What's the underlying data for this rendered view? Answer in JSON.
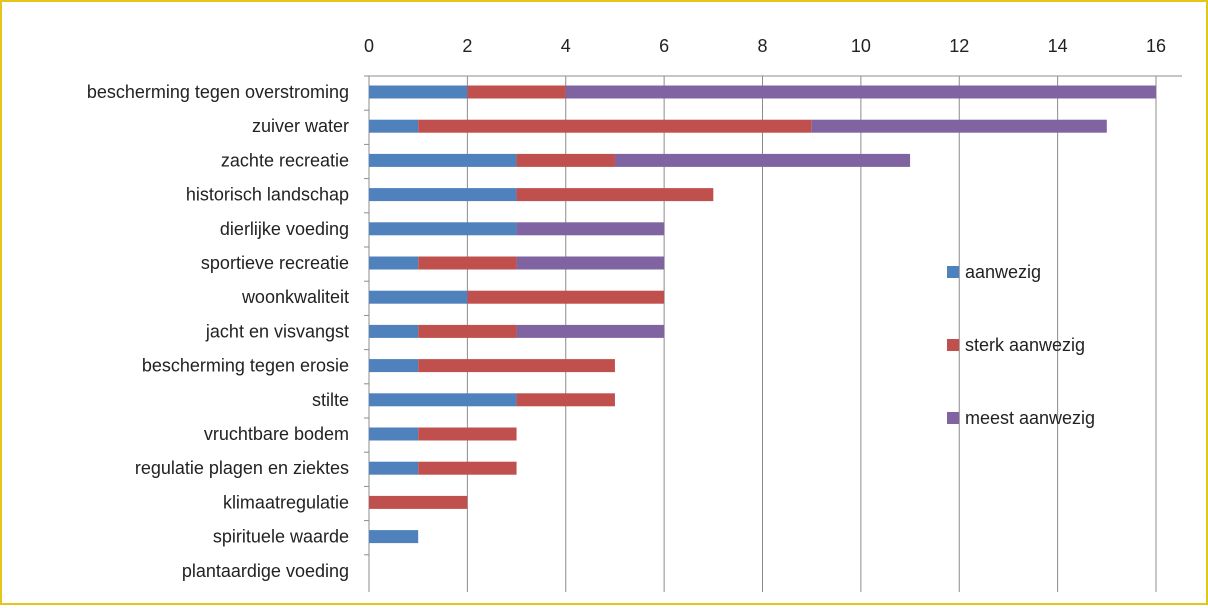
{
  "chart_data": {
    "type": "bar",
    "orientation": "horizontal",
    "stacked": true,
    "categories": [
      "bescherming tegen overstroming",
      "zuiver water",
      "zachte recreatie",
      "historisch landschap",
      "dierlijke voeding",
      "sportieve recreatie",
      "woonkwaliteit",
      "jacht en visvangst",
      "bescherming tegen erosie",
      "stilte",
      "vruchtbare bodem",
      "regulatie plagen en ziektes",
      "klimaatregulatie",
      "spirituele waarde",
      "plantaardige voeding"
    ],
    "series": [
      {
        "name": "aanwezig",
        "color": "#4f81bd",
        "values": [
          2,
          1,
          3,
          3,
          3,
          1,
          2,
          1,
          1,
          3,
          1,
          1,
          0,
          1,
          0
        ]
      },
      {
        "name": "sterk aanwezig",
        "color": "#c0504d",
        "values": [
          2,
          8,
          2,
          4,
          0,
          2,
          4,
          2,
          4,
          2,
          2,
          2,
          2,
          0,
          0
        ]
      },
      {
        "name": "meest aanwezig",
        "color": "#8064a2",
        "values": [
          12,
          6,
          6,
          0,
          3,
          3,
          0,
          3,
          0,
          0,
          0,
          0,
          0,
          0,
          0
        ]
      }
    ],
    "xlim": [
      0,
      16
    ],
    "xticks": [
      "0",
      "2",
      "4",
      "6",
      "8",
      "10",
      "12",
      "14",
      "16"
    ],
    "x_axis_position": "top",
    "grid": "vertical",
    "legend_position": "right",
    "title": "",
    "xlabel": "",
    "ylabel": ""
  },
  "colors": {
    "frame_border": "#e4c51a",
    "grid": "#8c8c8c"
  }
}
